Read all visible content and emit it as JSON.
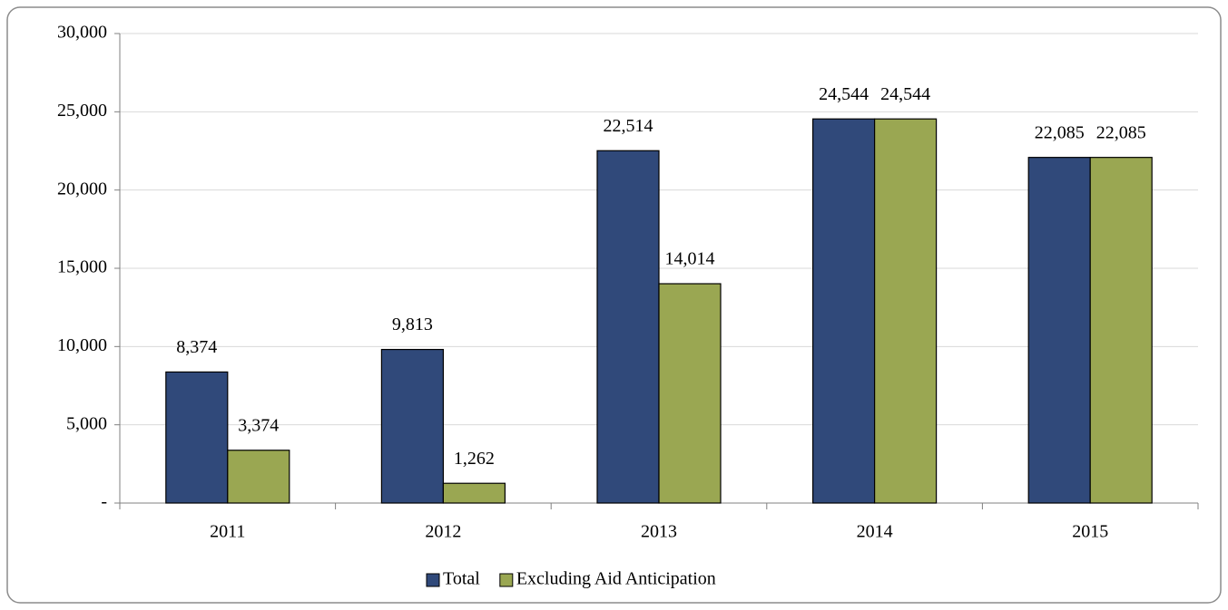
{
  "chart_data": {
    "type": "bar",
    "categories": [
      "2011",
      "2012",
      "2013",
      "2014",
      "2015"
    ],
    "series": [
      {
        "name": "Total",
        "color": "#30497a",
        "values": [
          8374,
          9813,
          22514,
          24544,
          22085
        ],
        "value_labels": [
          "8,374",
          "9,813",
          "22,514",
          "24,544",
          "22,085"
        ]
      },
      {
        "name": "Excluding Aid Anticipation",
        "color": "#9aa752",
        "values": [
          3374,
          1262,
          14014,
          24544,
          22085
        ],
        "value_labels": [
          "3,374",
          "1,262",
          "14,014",
          "24,544",
          "22,085"
        ]
      }
    ],
    "ylim": [
      0,
      30000
    ],
    "yticks": [
      {
        "value": 0,
        "label": "-"
      },
      {
        "value": 5000,
        "label": "5,000"
      },
      {
        "value": 10000,
        "label": "10,000"
      },
      {
        "value": 15000,
        "label": "15,000"
      },
      {
        "value": 20000,
        "label": "20,000"
      },
      {
        "value": 25000,
        "label": "25,000"
      },
      {
        "value": 30000,
        "label": "30,000"
      }
    ],
    "grid": true,
    "legend": "bottom"
  }
}
